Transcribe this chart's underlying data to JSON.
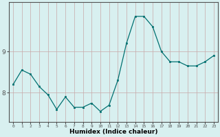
{
  "x": [
    0,
    1,
    2,
    3,
    4,
    5,
    6,
    7,
    8,
    9,
    10,
    11,
    12,
    13,
    14,
    15,
    16,
    17,
    18,
    19,
    20,
    21,
    22,
    23
  ],
  "y": [
    8.2,
    8.55,
    8.45,
    8.15,
    7.95,
    7.6,
    7.9,
    7.65,
    7.65,
    7.75,
    7.55,
    7.7,
    8.3,
    9.2,
    9.85,
    9.85,
    9.6,
    9.0,
    8.75,
    8.75,
    8.65,
    8.65,
    8.75,
    8.9
  ],
  "xlabel": "Humidex (Indice chaleur)",
  "ylabel": "",
  "line_color": "#007070",
  "marker_color": "#007070",
  "bg_color": "#d8f0f0",
  "grid_color_v": "#c8a8a8",
  "grid_color_h": "#c8a8a8",
  "axis_color": "#505050",
  "ylim_min": 7.3,
  "ylim_max": 10.2,
  "yticks": [
    8,
    9
  ],
  "xlim_min": -0.5,
  "xlim_max": 23.5
}
